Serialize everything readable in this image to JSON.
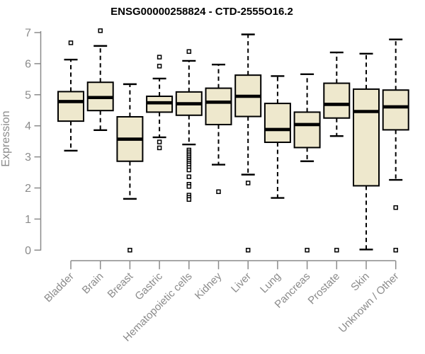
{
  "chart_data": {
    "type": "boxplot",
    "title": "ENSG00000258824 - CTD-2555O16.2",
    "xlabel": "",
    "ylabel": "Expression",
    "ylim": [
      0,
      7
    ],
    "yticks": [
      0,
      1,
      2,
      3,
      4,
      5,
      6,
      7
    ],
    "grid": false,
    "legend": "none",
    "categories": [
      "Bladder",
      "Brain",
      "Breast",
      "Gastric",
      "Hematopoietic cells",
      "Kidney",
      "Liver",
      "Lung",
      "Pancreas",
      "Prostate",
      "Skin",
      "Unknown / Other"
    ],
    "series": [
      {
        "name": "Bladder",
        "whisker_low": 3.2,
        "q1": 4.15,
        "median": 4.78,
        "q3": 5.1,
        "whisker_high": 6.13,
        "outliers": [
          6.67
        ]
      },
      {
        "name": "Brain",
        "whisker_low": 3.86,
        "q1": 4.49,
        "median": 4.91,
        "q3": 5.4,
        "whisker_high": 6.57,
        "outliers": [
          7.06
        ]
      },
      {
        "name": "Breast",
        "whisker_low": 1.65,
        "q1": 2.86,
        "median": 3.57,
        "q3": 4.29,
        "whisker_high": 5.34,
        "outliers": [
          0.0
        ]
      },
      {
        "name": "Gastric",
        "whisker_low": 3.63,
        "q1": 4.44,
        "median": 4.74,
        "q3": 4.95,
        "whisker_high": 5.52,
        "outliers": [
          6.21,
          5.92,
          3.48,
          3.29
        ]
      },
      {
        "name": "Hematopoietic cells",
        "whisker_low": 3.4,
        "q1": 4.34,
        "median": 4.71,
        "q3": 5.09,
        "whisker_high": 6.09,
        "outliers": [
          6.39,
          3.22,
          3.16,
          3.1,
          3.04,
          2.98,
          2.92,
          2.86,
          2.8,
          2.74,
          2.66,
          2.58,
          2.36,
          2.12,
          2.05,
          1.77,
          1.7,
          1.63
        ]
      },
      {
        "name": "Kidney",
        "whisker_low": 2.75,
        "q1": 4.04,
        "median": 4.76,
        "q3": 5.21,
        "whisker_high": 5.97,
        "outliers": [
          1.88
        ]
      },
      {
        "name": "Liver",
        "whisker_low": 2.43,
        "q1": 4.3,
        "median": 4.95,
        "q3": 5.63,
        "whisker_high": 6.94,
        "outliers": [
          2.16,
          0.0
        ]
      },
      {
        "name": "Lung",
        "whisker_low": 1.68,
        "q1": 3.47,
        "median": 3.88,
        "q3": 4.72,
        "whisker_high": 5.6,
        "outliers": []
      },
      {
        "name": "Pancreas",
        "whisker_low": 2.86,
        "q1": 3.3,
        "median": 4.04,
        "q3": 4.44,
        "whisker_high": 5.66,
        "outliers": [
          0.0
        ]
      },
      {
        "name": "Prostate",
        "whisker_low": 3.67,
        "q1": 4.25,
        "median": 4.69,
        "q3": 5.37,
        "whisker_high": 6.36,
        "outliers": [
          0.0
        ]
      },
      {
        "name": "Skin",
        "whisker_low": 0.02,
        "q1": 2.07,
        "median": 4.46,
        "q3": 5.18,
        "whisker_high": 6.32,
        "outliers": []
      },
      {
        "name": "Unknown / Other",
        "whisker_low": 2.26,
        "q1": 3.87,
        "median": 4.61,
        "q3": 5.15,
        "whisker_high": 6.78,
        "outliers": [
          1.37,
          0.0
        ]
      }
    ],
    "colors": {
      "box_fill": "#EEE8CD",
      "box_stroke": "#000000",
      "median": "#000000",
      "whisker": "#000000",
      "axis": "#8B8B8B",
      "tick_label": "#8B8B8B",
      "title": "#000000",
      "background": "#FFFFFF"
    }
  }
}
